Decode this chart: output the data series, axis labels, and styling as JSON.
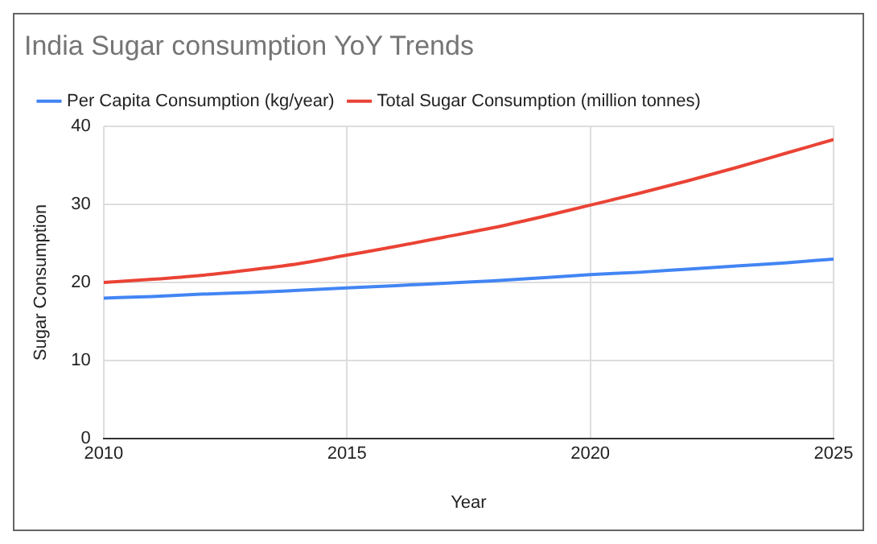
{
  "chart_data": {
    "type": "line",
    "title": "India Sugar consumption YoY Trends",
    "xlabel": "Year",
    "ylabel": "Sugar Consumption",
    "x": [
      2010,
      2011,
      2012,
      2013,
      2014,
      2015,
      2016,
      2017,
      2018,
      2019,
      2020,
      2021,
      2022,
      2023,
      2024,
      2025
    ],
    "series": [
      {
        "name": "Per Capita Consumption (kg/year)",
        "color": "#4285f4",
        "values": [
          18,
          18.2,
          18.5,
          18.7,
          19,
          19.3,
          19.6,
          19.9,
          20.2,
          20.6,
          21,
          21.3,
          21.7,
          22.1,
          22.5,
          23
        ]
      },
      {
        "name": "Total Sugar Consumption (million tonnes)",
        "color": "#ea4335",
        "values": [
          20,
          20.4,
          20.9,
          21.6,
          22.4,
          23.5,
          24.6,
          25.8,
          27,
          28.4,
          29.9,
          31.4,
          33,
          34.7,
          36.5,
          38.3
        ]
      }
    ],
    "xlim": [
      2010,
      2025
    ],
    "xticks": [
      2010,
      2015,
      2020,
      2025
    ],
    "ylim": [
      0,
      40
    ],
    "yticks": [
      0,
      10,
      20,
      30,
      40
    ],
    "grid": true,
    "legend": "top left",
    "marker": "none",
    "line_style": "solid"
  }
}
